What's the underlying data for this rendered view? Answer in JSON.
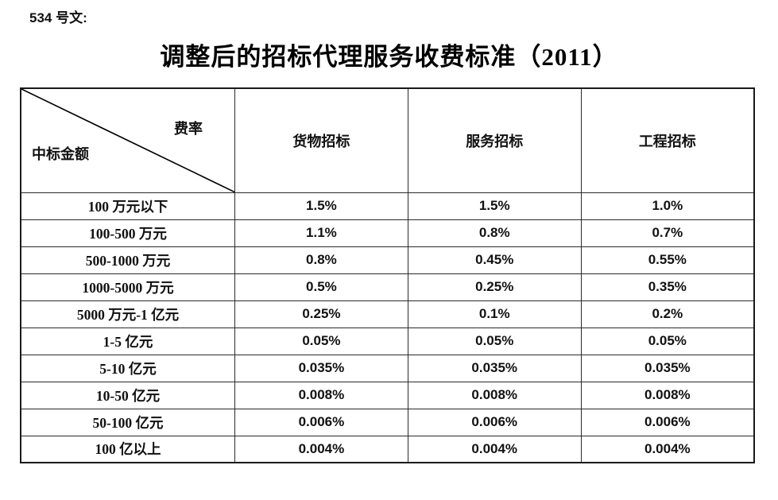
{
  "doc_label": "534 号文:",
  "title": "调整后的招标代理服务收费标准（2011）",
  "table": {
    "corner": {
      "top_right": "费率",
      "bottom_left": "中标金额"
    },
    "columns": [
      "货物招标",
      "服务招标",
      "工程招标"
    ],
    "rows": [
      {
        "label": "100 万元以下",
        "values": [
          "1.5%",
          "1.5%",
          "1.0%"
        ]
      },
      {
        "label": "100-500 万元",
        "values": [
          "1.1%",
          "0.8%",
          "0.7%"
        ]
      },
      {
        "label": "500-1000 万元",
        "values": [
          "0.8%",
          "0.45%",
          "0.55%"
        ]
      },
      {
        "label": "1000-5000 万元",
        "values": [
          "0.5%",
          "0.25%",
          "0.35%"
        ]
      },
      {
        "label": "5000 万元-1 亿元",
        "values": [
          "0.25%",
          "0.1%",
          "0.2%"
        ]
      },
      {
        "label": "1-5 亿元",
        "values": [
          "0.05%",
          "0.05%",
          "0.05%"
        ]
      },
      {
        "label": "5-10 亿元",
        "values": [
          "0.035%",
          "0.035%",
          "0.035%"
        ]
      },
      {
        "label": "10-50 亿元",
        "values": [
          "0.008%",
          "0.008%",
          "0.008%"
        ]
      },
      {
        "label": "50-100 亿元",
        "values": [
          "0.006%",
          "0.006%",
          "0.006%"
        ]
      },
      {
        "label": "100 亿以上",
        "values": [
          "0.004%",
          "0.004%",
          "0.004%"
        ]
      }
    ],
    "line_color": "#000000"
  }
}
